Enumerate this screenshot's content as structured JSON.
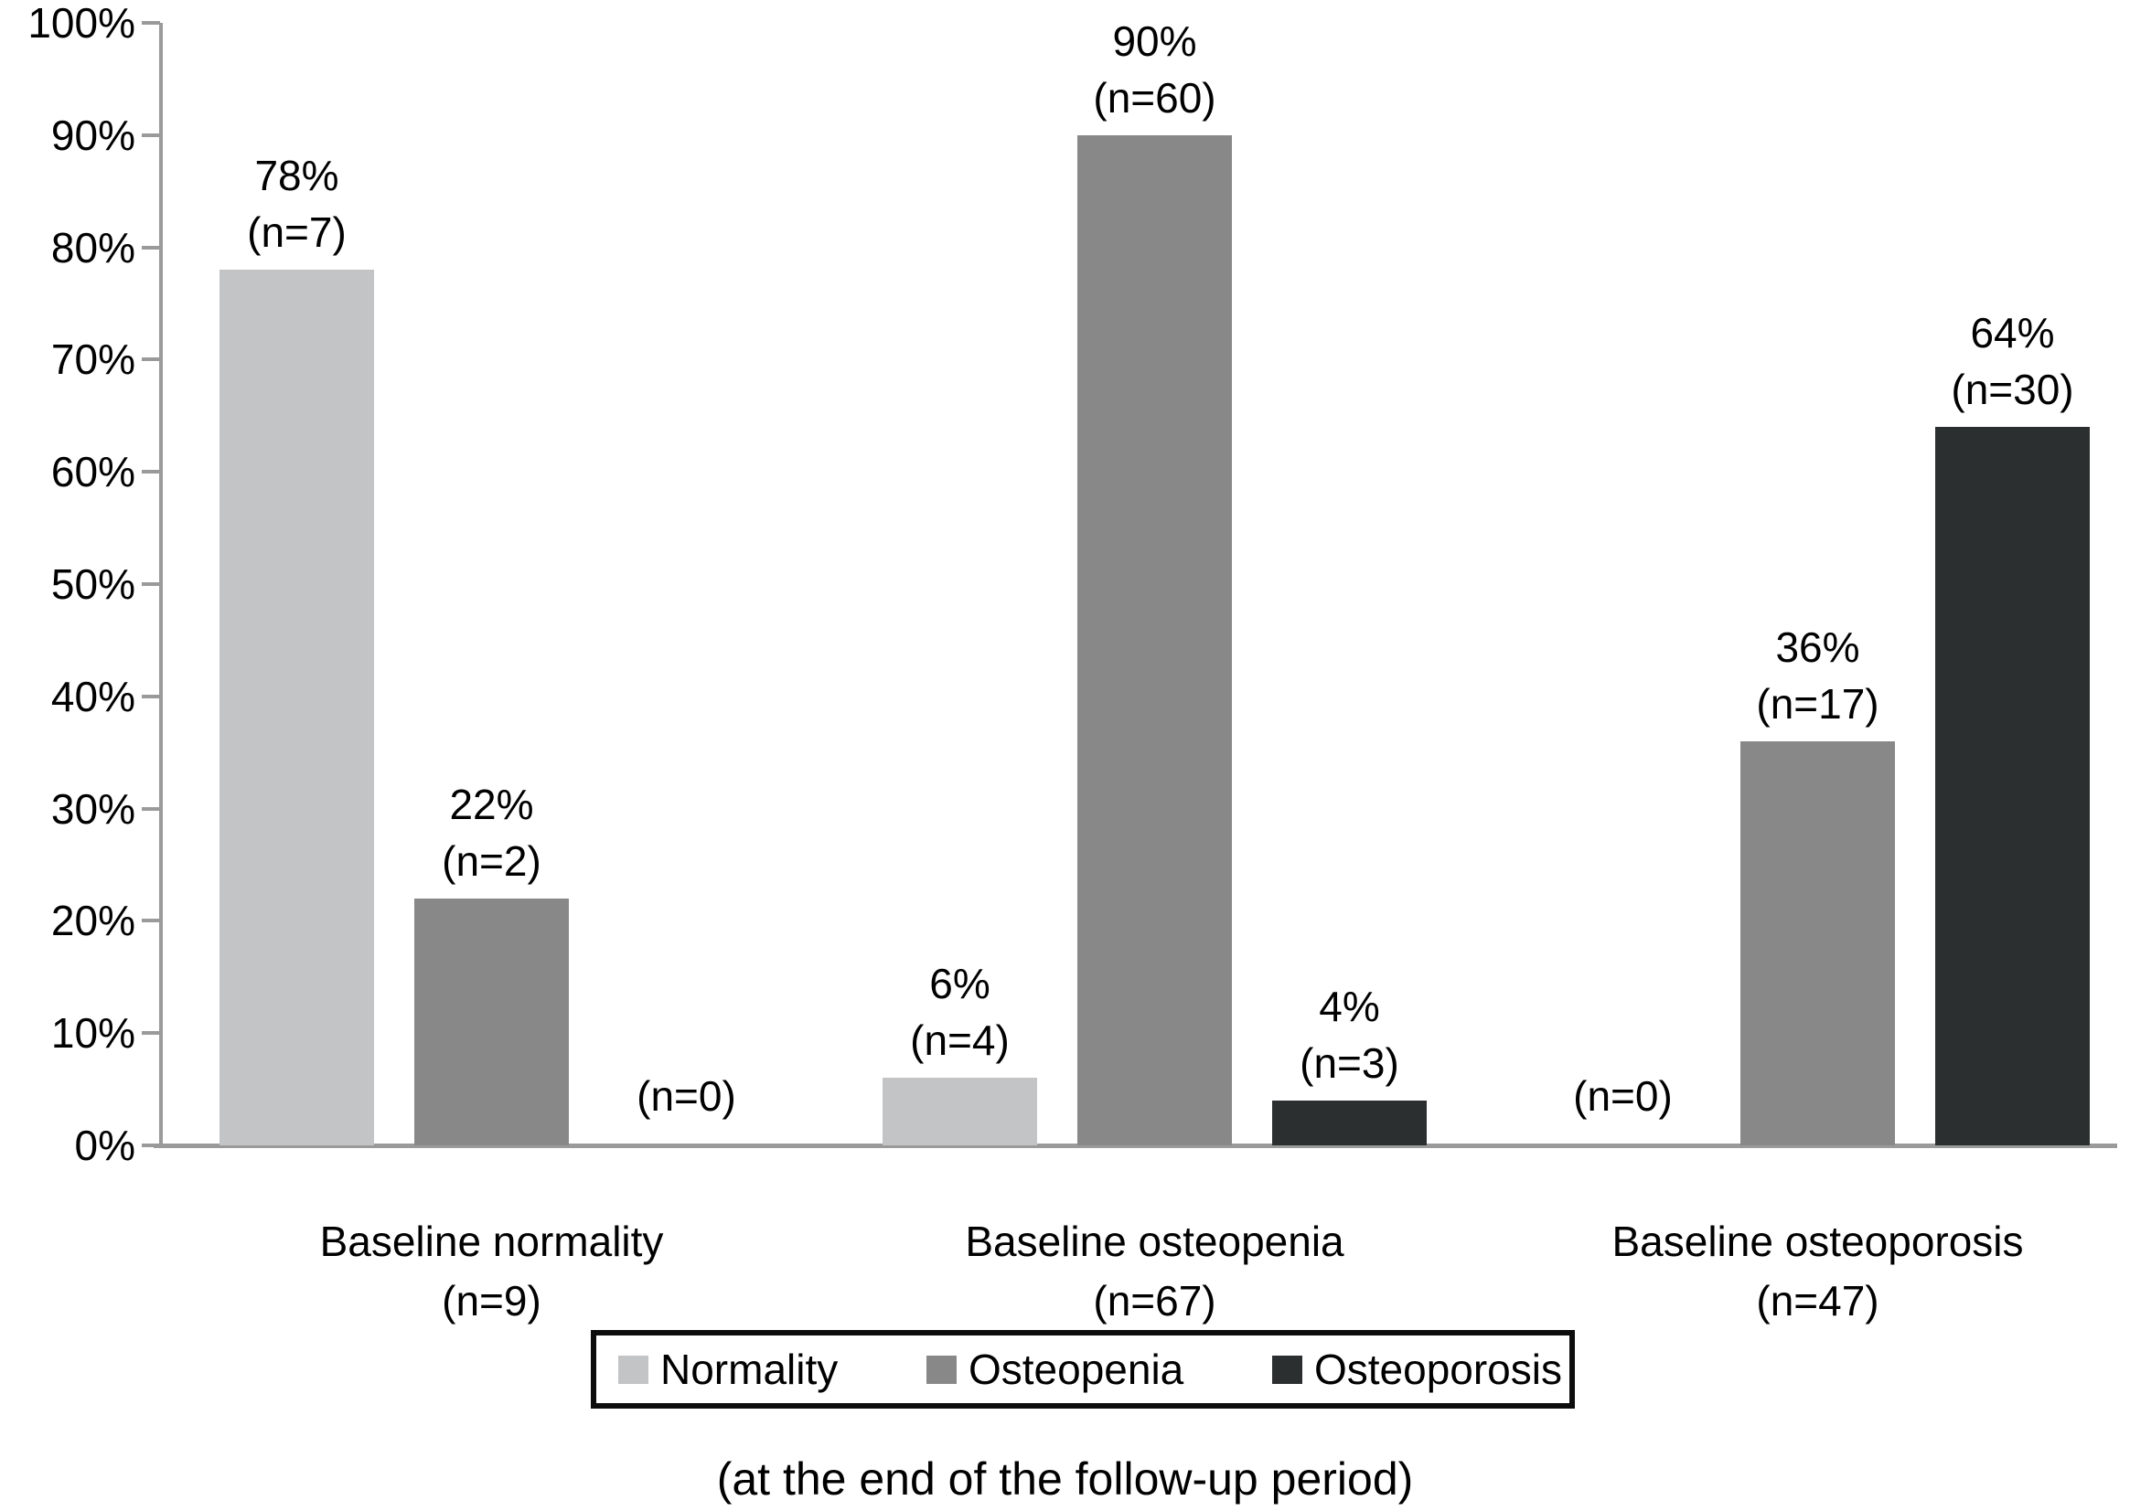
{
  "chart_data": {
    "type": "bar",
    "title": "",
    "caption": "(at the end of the follow-up period)",
    "grid": false,
    "background": "#ffffff",
    "axis_color": "#9a9a9a",
    "text_color": "#000000",
    "ylim": [
      0,
      100
    ],
    "ytick_step": 10,
    "ytick_labels": [
      "0%",
      "10%",
      "20%",
      "30%",
      "40%",
      "50%",
      "60%",
      "70%",
      "80%",
      "90%",
      "100%"
    ],
    "legend": {
      "position": "bottom",
      "items": [
        "Normality",
        "Osteopenia",
        "Osteoporosis"
      ]
    },
    "series": [
      {
        "name": "Normality",
        "color": "#c3c4c5"
      },
      {
        "name": "Osteopenia",
        "color": "#888889"
      },
      {
        "name": "Osteoporosis",
        "color": "#2c2f30"
      }
    ],
    "groups": [
      {
        "label": "Baseline normality",
        "sublabel": "(n=9)",
        "values": [
          {
            "series": "Normality",
            "pct": 78,
            "pct_label": "78%",
            "n_label": "(n=7)"
          },
          {
            "series": "Osteopenia",
            "pct": 22,
            "pct_label": "22%",
            "n_label": "(n=2)"
          },
          {
            "series": "Osteoporosis",
            "pct": 0,
            "pct_label": "",
            "n_label": "(n=0)"
          }
        ]
      },
      {
        "label": "Baseline osteopenia",
        "sublabel": "(n=67)",
        "values": [
          {
            "series": "Normality",
            "pct": 6,
            "pct_label": "6%",
            "n_label": "(n=4)"
          },
          {
            "series": "Osteopenia",
            "pct": 90,
            "pct_label": "90%",
            "n_label": "(n=60)"
          },
          {
            "series": "Osteoporosis",
            "pct": 4,
            "pct_label": "4%",
            "n_label": "(n=3)"
          }
        ]
      },
      {
        "label": "Baseline osteoporosis",
        "sublabel": "(n=47)",
        "values": [
          {
            "series": "Normality",
            "pct": 0,
            "pct_label": "",
            "n_label": "(n=0)"
          },
          {
            "series": "Osteopenia",
            "pct": 36,
            "pct_label": "36%",
            "n_label": "(n=17)"
          },
          {
            "series": "Osteoporosis",
            "pct": 64,
            "pct_label": "64%",
            "n_label": "(n=30)"
          }
        ]
      }
    ]
  }
}
